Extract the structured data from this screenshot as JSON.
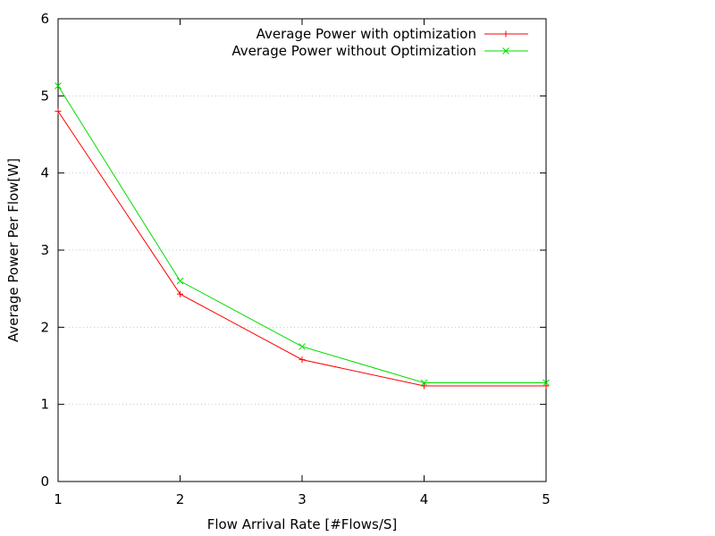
{
  "chart_data": {
    "type": "line",
    "title": "",
    "xlabel": "Flow Arrival Rate [#Flows/S]",
    "ylabel": "Average Power Per Flow[W]",
    "xlim": [
      1,
      5
    ],
    "ylim": [
      0,
      6
    ],
    "x_ticks": [
      "1",
      "2",
      "3",
      "4",
      "5"
    ],
    "y_ticks": [
      "0",
      "1",
      "2",
      "3",
      "4",
      "5",
      "6"
    ],
    "grid": "horizontal dotted",
    "legend_position": "top-right",
    "x": [
      1,
      2,
      3,
      4,
      5
    ],
    "series": [
      {
        "name": "Average Power with optimization",
        "values": [
          4.8,
          2.43,
          1.58,
          1.24,
          1.24
        ],
        "color": "#ff0000",
        "marker": "plus"
      },
      {
        "name": "Average Power without Optimization",
        "values": [
          5.13,
          2.6,
          1.75,
          1.28,
          1.28
        ],
        "color": "#00dd00",
        "marker": "cross"
      }
    ]
  }
}
